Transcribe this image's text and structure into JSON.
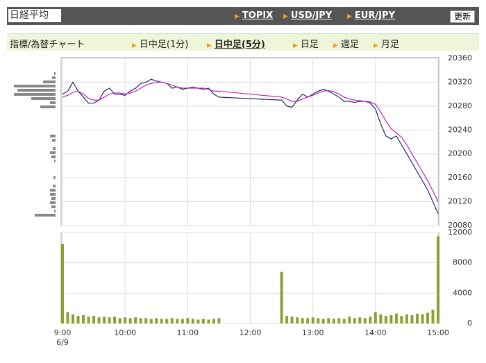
{
  "header": {
    "title": "日経平均",
    "links": [
      "TOPIX",
      "USD/JPY",
      "EUR/JPY"
    ],
    "button": "更新"
  },
  "nav": {
    "label": "指標/為替チャート",
    "items": [
      "日中足(1分)",
      "日中足(5分)",
      "日足",
      "週足",
      "月足"
    ],
    "selected": 1
  },
  "chart_data": [
    {
      "type": "line",
      "x": [
        "9:00",
        "9:05",
        "9:10",
        "9:15",
        "9:20",
        "9:25",
        "9:30",
        "9:35",
        "9:40",
        "9:45",
        "9:50",
        "9:55",
        "10:00",
        "10:05",
        "10:10",
        "10:15",
        "10:20",
        "10:25",
        "10:30",
        "10:35",
        "10:40",
        "10:45",
        "10:50",
        "10:55",
        "11:00",
        "11:05",
        "11:10",
        "11:15",
        "11:20",
        "11:25",
        "11:30",
        "12:30",
        "12:35",
        "12:40",
        "12:45",
        "12:50",
        "12:55",
        "13:00",
        "13:05",
        "13:10",
        "13:15",
        "13:20",
        "13:25",
        "13:30",
        "13:35",
        "13:40",
        "13:45",
        "13:50",
        "13:55",
        "14:00",
        "14:05",
        "14:10",
        "14:15",
        "14:20",
        "14:25",
        "14:30",
        "14:35",
        "14:40",
        "14:45",
        "14:50",
        "14:55",
        "15:00"
      ],
      "series": [
        {
          "color": "#1c2a66",
          "values": [
            20300,
            20305,
            20320,
            20305,
            20295,
            20285,
            20285,
            20290,
            20305,
            20310,
            20300,
            20300,
            20298,
            20305,
            20310,
            20318,
            20320,
            20325,
            20322,
            20320,
            20318,
            20310,
            20312,
            20308,
            20310,
            20312,
            20310,
            20308,
            20310,
            20300,
            20295,
            20290,
            20280,
            20278,
            20290,
            20300,
            20295,
            20300,
            20305,
            20308,
            20305,
            20300,
            20295,
            20288,
            20288,
            20286,
            20288,
            20288,
            20285,
            20275,
            20250,
            20230,
            20225,
            20230,
            20215,
            20200,
            20185,
            20170,
            20155,
            20140,
            20120,
            20100
          ]
        },
        {
          "color": "#c020c0",
          "values": [
            20295,
            20298,
            20303,
            20305,
            20300,
            20293,
            20290,
            20290,
            20295,
            20300,
            20302,
            20302,
            20300,
            20302,
            20305,
            20310,
            20315,
            20318,
            20320,
            20320,
            20318,
            20315,
            20312,
            20310,
            20310,
            20310,
            20310,
            20310,
            20308,
            20305,
            20305,
            20295,
            20292,
            20288,
            20288,
            20292,
            20295,
            20298,
            20302,
            20305,
            20306,
            20304,
            20300,
            20295,
            20292,
            20290,
            20289,
            20288,
            20287,
            20283,
            20270,
            20255,
            20242,
            20235,
            20228,
            20215,
            20200,
            20185,
            20170,
            20155,
            20138,
            20120
          ]
        }
      ],
      "xticks": [
        "9:00",
        "10:00",
        "11:00",
        "12:00",
        "13:00",
        "14:00",
        "15:00"
      ],
      "xlim": [
        "9:00",
        "15:00"
      ],
      "date": "6/9",
      "ylim": [
        20080,
        20360
      ],
      "yticks": [
        20080,
        20120,
        20160,
        20200,
        20240,
        20280,
        20320,
        20360
      ],
      "grid": true,
      "volume_profile": {
        "color": "#888",
        "values": [
          2,
          5,
          18,
          60,
          55,
          60,
          35,
          8,
          22,
          0,
          0,
          0,
          0,
          0,
          0,
          8,
          5,
          0,
          4,
          8,
          6,
          2,
          0,
          0,
          0,
          3,
          0,
          4,
          8,
          8,
          6,
          8,
          6,
          2,
          30
        ]
      }
    },
    {
      "type": "bar",
      "color": "#8aa030",
      "values": [
        10500,
        1500,
        1200,
        1000,
        1100,
        900,
        1000,
        800,
        900,
        800,
        900,
        700,
        800,
        700,
        800,
        700,
        700,
        600,
        700,
        600,
        600,
        700,
        600,
        600,
        700,
        600,
        500,
        600,
        500,
        600,
        700,
        6800,
        1000,
        900,
        800,
        700,
        700,
        800,
        700,
        600,
        700,
        600,
        700,
        600,
        900,
        700,
        800,
        700,
        900,
        1500,
        1200,
        1000,
        1100,
        1300,
        1000,
        1200,
        1100,
        1300,
        1200,
        1400,
        1800,
        11500
      ],
      "ylim": [
        0,
        12000
      ],
      "yticks": [
        0,
        4000,
        8000,
        12000
      ],
      "grid": true
    }
  ]
}
